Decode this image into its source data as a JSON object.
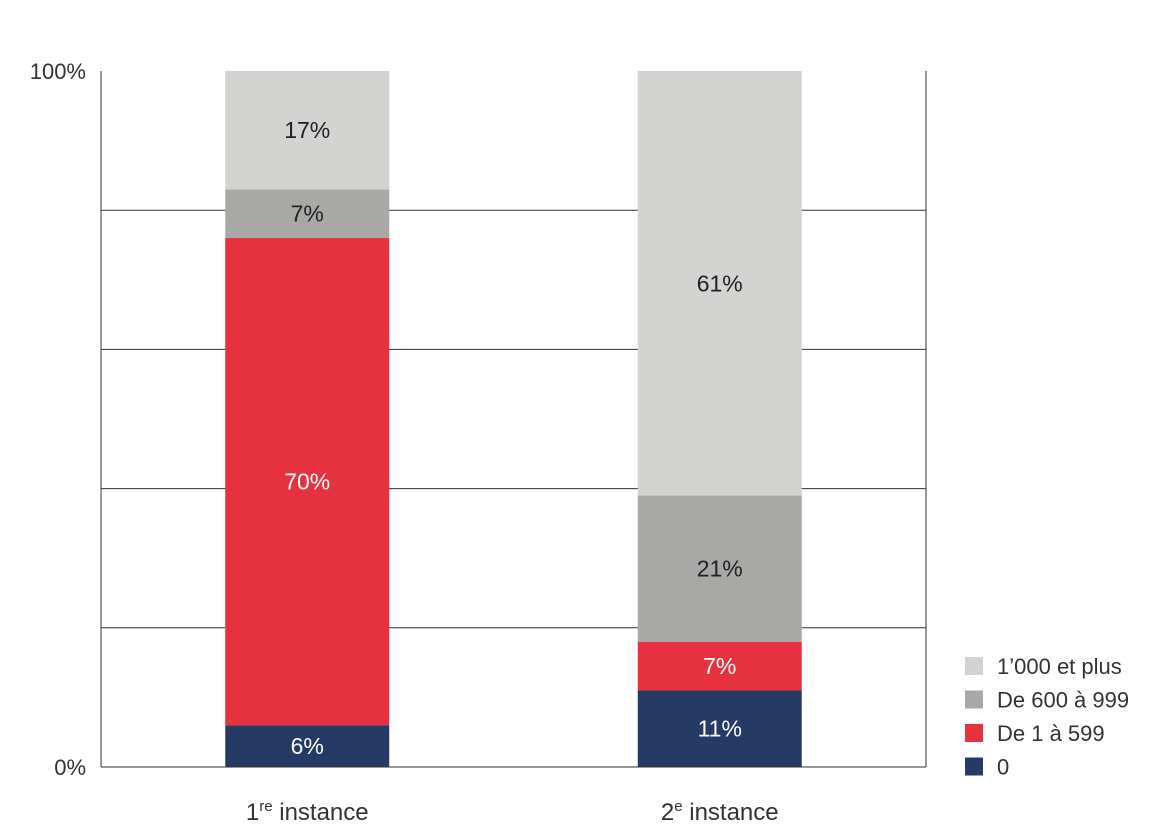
{
  "chart_data": {
    "type": "bar",
    "stacked": true,
    "normalized": true,
    "ylim": [
      0,
      100
    ],
    "y_ticks": [
      0,
      20,
      40,
      60,
      80,
      100
    ],
    "y_tick_labels": {
      "0": "0%",
      "100": "100%"
    },
    "grid": true,
    "legend_position": "bottom-right",
    "categories": [
      {
        "base": "1",
        "sup": "re",
        "rest": " instance"
      },
      {
        "base": "2",
        "sup": "e",
        "rest": " instance"
      }
    ],
    "series": [
      {
        "name": "0",
        "color": "#263a66",
        "label_color": "#ffffff",
        "values": [
          6,
          11
        ],
        "labels": [
          "6%",
          "11%"
        ]
      },
      {
        "name": "De 1 à 599",
        "color": "#e6323e",
        "label_color": "#ffffff",
        "values": [
          70,
          7
        ],
        "labels": [
          "70%",
          "7%"
        ]
      },
      {
        "name": "De 600 à 999",
        "color": "#a8a8a6",
        "label_color": "#222222",
        "values": [
          7,
          21
        ],
        "labels": [
          "7%",
          "21%"
        ]
      },
      {
        "name": "1’000 et plus",
        "color": "#d3d3d2",
        "label_color": "#222222",
        "values": [
          17,
          61
        ],
        "labels": [
          "17%",
          "61%"
        ]
      }
    ]
  }
}
